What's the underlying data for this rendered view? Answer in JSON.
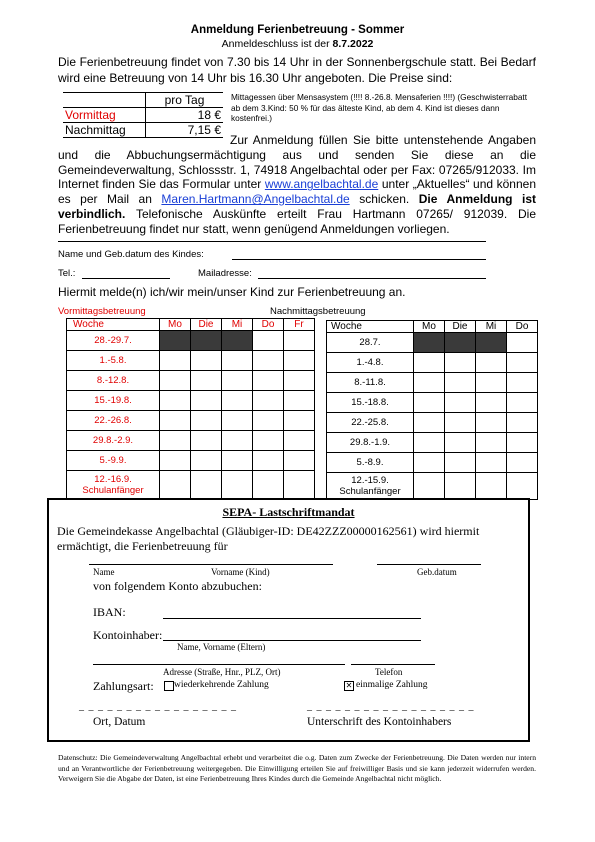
{
  "header": {
    "title": "Anmeldung Ferienbetreuung - Sommer",
    "deadline_label": "Anmeldeschluss ist der",
    "deadline_date": "8.7.2022"
  },
  "intro": "Die Ferienbetreuung findet von 7.30 bis 14 Uhr in der Sonnenbergschule statt. Bei Bedarf wird eine Betreuung von 14 Uhr bis 16.30 Uhr angeboten. Die Preise sind:",
  "prices": {
    "header": "pro Tag",
    "rows": [
      {
        "label": "Vormittag",
        "value": "18 €"
      },
      {
        "label": "Nachmittag",
        "value": "7,15 €"
      }
    ]
  },
  "meal_note": "Mittagessen über Mensasystem (!!!! 8.-26.8.  Mensaferien !!!!) (Geschwisterrabatt ab dem 3.Kind: 50 % für das älteste Kind, ab dem 4. Kind ist dieses dann kostenfrei.)",
  "registration_text": {
    "p1": "Zur Anmeldung füllen Sie bitte untenstehende Angaben und die Abbuchungsermächtigung aus und senden Sie diese an die Gemeindeverwaltung, Schlossstr. 1, 74918 Angelbachtal oder per Fax: 07265/912033. Im Internet finden Sie das Formular unter",
    "url": "www.angelbachtal.de",
    "p2": "unter „Aktuelles“ und können es per Mail an",
    "email": "Maren.Hartmann@Angelbachtal.de",
    "p3": "schicken.",
    "bold": "Die Anmeldung ist verbindlich.",
    "p4": "Telefonische Auskünfte erteilt Frau Hartmann 07265/ 912039. Die Ferienbetreuung findet nur statt, wenn genügend Anmeldungen vorliegen."
  },
  "form": {
    "name_label": "Name und Geb.datum des Kindes:",
    "tel_label": "Tel.:",
    "mail_label": "Mailadresse:",
    "declaration": "Hiermit melde(n) ich/wir mein/unser Kind zur Ferienbetreuung an."
  },
  "morning": {
    "title": "Vormittagsbetreuung",
    "headers": [
      "Woche",
      "Mo",
      "Die",
      "Mi",
      "Do",
      "Fr"
    ],
    "weeks": [
      "28.-29.7.",
      "1.-5.8.",
      "8.-12.8.",
      "15.-19.8.",
      "22.-26.8.",
      "29.8.-2.9.",
      "5.-9.9.",
      "12.-16.9.",
      "Schulanfänger"
    ]
  },
  "afternoon": {
    "title": "Nachmittagsbetreuung",
    "headers": [
      "Woche",
      "Mo",
      "Die",
      "Mi",
      "Do"
    ],
    "weeks": [
      "28.7.",
      "1.-4.8.",
      "8.-11.8.",
      "15.-18.8.",
      "22.-25.8.",
      "29.8.-1.9.",
      "5.-8.9.",
      "12.-15.9.",
      "Schulanfänger"
    ]
  },
  "sepa": {
    "title": "SEPA- Lastschriftmandat",
    "intro": "Die Gemeindekasse Angelbachtal (Gläubiger-ID: DE42ZZZ00000162561) wird hiermit ermächtigt, die Ferienbetreuung für",
    "name_caption": "Name",
    "vorname_caption": "Vorname (Kind)",
    "gebdatum_caption": "Geb.datum",
    "konto_text": "von folgendem Konto abzubuchen:",
    "iban_label": "IBAN:",
    "owner_label": "Kontoinhaber:",
    "owner_caption": "Name, Vorname (Eltern)",
    "address_caption": "Adresse (Straße, Hnr., PLZ, Ort)",
    "phone_caption": "Telefon",
    "payment_label": "Zahlungsart:",
    "recurring": "wiederkehrende Zahlung",
    "single": "einmalige Zahlung",
    "place_date": "Ort, Datum",
    "signature": "Unterschrift des Kontoinhabers",
    "dashes": "_ _ _ _ _ _ _ _ _ _ _ _ _ _ _   _ _",
    "dashes2": "_ _ _ _ _ _ _ _ _ _ _ _ _ _ _ _ _ _"
  },
  "privacy": "Datenschutz: Die Gemeindeverwaltung Angelbachtal erhebt und verarbeitet die o.g. Daten zum Zwecke der Ferienbetreuung. Die Daten werden nur intern und an Verantwortliche der Ferienbetreuung weitergegeben. Die Einwilligung erteilen Sie auf freiwilliger Basis und sie kann jederzeit widerrufen werden. Verweigern Sie die Abgabe der Daten, ist eine Ferienbetreuung Ihres Kindes durch die Gemeinde Angelbachtal nicht möglich."
}
